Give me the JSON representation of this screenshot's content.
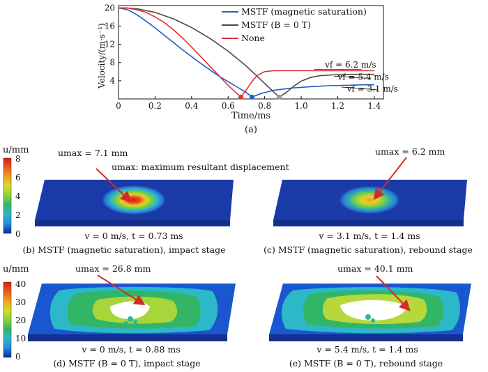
{
  "chart_data": [
    {
      "type": "line",
      "panel_label": "(a)",
      "xlabel": "Time/ms",
      "ylabel": "Velocity/(m·s⁻¹)",
      "xlim": [
        0,
        1.45
      ],
      "ylim": [
        0,
        20.5
      ],
      "xticks": [
        "0",
        "0.2",
        "0.4",
        "0.6",
        "0.8",
        "1.0",
        "1.2",
        "1.4"
      ],
      "yticks": [
        "4",
        "8",
        "12",
        "16",
        "20"
      ],
      "legend_position": "top-right",
      "legend": [
        "MSTF (magnetic saturation)",
        "MSTF (B = 0 T)",
        "None"
      ],
      "series": [
        {
          "name": "MSTF (magnetic saturation)",
          "color": "#1f5fbf",
          "x": [
            0,
            0.05,
            0.1,
            0.15,
            0.2,
            0.25,
            0.3,
            0.35,
            0.4,
            0.45,
            0.5,
            0.55,
            0.6,
            0.65,
            0.7,
            0.73,
            0.78,
            0.85,
            0.95,
            1.05,
            1.15,
            1.25,
            1.35,
            1.4
          ],
          "y": [
            20,
            19.6,
            18.5,
            17.1,
            15.6,
            14.0,
            12.4,
            10.8,
            9.3,
            7.8,
            6.4,
            5.0,
            3.8,
            2.6,
            1.4,
            0.4,
            1.2,
            1.9,
            2.4,
            2.7,
            2.9,
            3.0,
            3.1,
            3.1
          ]
        },
        {
          "name": "MSTF (B = 0 T)",
          "color": "#4a4a4a",
          "x": [
            0,
            0.05,
            0.1,
            0.2,
            0.3,
            0.4,
            0.5,
            0.6,
            0.7,
            0.75,
            0.8,
            0.85,
            0.88,
            0.92,
            0.96,
            1.0,
            1.05,
            1.1,
            1.2,
            1.3,
            1.4
          ],
          "y": [
            20,
            19.97,
            19.8,
            19.0,
            17.6,
            15.7,
            13.3,
            10.5,
            7.2,
            5.3,
            3.4,
            1.5,
            0.4,
            1.5,
            2.8,
            3.9,
            4.7,
            5.1,
            5.35,
            5.4,
            5.4
          ]
        },
        {
          "name": "None",
          "color": "#e03030",
          "x": [
            0,
            0.05,
            0.1,
            0.15,
            0.2,
            0.25,
            0.3,
            0.35,
            0.4,
            0.45,
            0.5,
            0.55,
            0.6,
            0.64,
            0.67,
            0.7,
            0.73,
            0.76,
            0.8,
            0.85,
            0.9,
            1.0,
            1.2,
            1.4
          ],
          "y": [
            20,
            19.95,
            19.6,
            19.0,
            18.0,
            16.8,
            15.2,
            13.4,
            11.4,
            9.3,
            7.2,
            5.1,
            3.0,
            1.5,
            0.4,
            2.0,
            3.8,
            5.2,
            6.0,
            6.2,
            6.2,
            6.2,
            6.2,
            6.2
          ]
        }
      ],
      "markers": [
        {
          "x": 0.67,
          "y": 0.4,
          "color": "#e03030"
        },
        {
          "x": 0.73,
          "y": 0.4,
          "color": "#1f5fbf"
        },
        {
          "x": 0.88,
          "y": 0.4,
          "color": "#9a9a9a"
        }
      ],
      "annotations": [
        {
          "text": "vf = 6.2 m/s",
          "x": 1.13,
          "y": 6.9,
          "leader_x": [
            1.07,
            1.33
          ],
          "leader_y": [
            6.5,
            6.5
          ]
        },
        {
          "text": "vf = 5.4 m/s",
          "x": 1.2,
          "y": 4.2,
          "leader_x": [
            1.18,
            1.38
          ],
          "leader_y": [
            5.0,
            4.5
          ]
        },
        {
          "text": "vf = 3.1 m/s",
          "x": 1.25,
          "y": 1.6,
          "leader_x": [
            1.22,
            1.42
          ],
          "leader_y": [
            2.6,
            2.0
          ]
        }
      ]
    },
    {
      "type": "heatmap",
      "colorbar_label": "u/mm",
      "colorbar_ticks": [
        "8",
        "6",
        "4",
        "2",
        "0"
      ],
      "title_note": "umax: maximum resultant displacement",
      "panels": [
        {
          "label": "(b) MSTF (magnetic saturation), impact stage",
          "state": "v = 0 m/s, t = 0.73 ms",
          "umax": "umax = 7.1 mm"
        },
        {
          "label": "(c) MSTF (magnetic saturation), rebound stage",
          "state": "v = 3.1 m/s, t = 1.4 ms",
          "umax": "umax = 6.2 mm"
        }
      ]
    },
    {
      "type": "heatmap",
      "colorbar_label": "u/mm",
      "colorbar_ticks": [
        "40",
        "30",
        "20",
        "10",
        "0"
      ],
      "panels": [
        {
          "label": "(d) MSTF (B = 0 T), impact stage",
          "state": "v = 0 m/s, t = 0.88 ms",
          "umax": "umax = 26.8 mm"
        },
        {
          "label": "(e) MSTF (B = 0 T), rebound stage",
          "state": "v = 5.4 m/s, t = 1.4 ms",
          "umax": "umax = 40.1 mm"
        }
      ]
    }
  ],
  "colors": {
    "plate_blue": "#1a3aa8",
    "arrow_red": "#d42a2a",
    "colormap": [
      "#0a2a9a",
      "#1a56d0",
      "#2a8ae0",
      "#2cb8c8",
      "#33b566",
      "#8cd13a",
      "#d8dc2a",
      "#f0a020",
      "#e85a1a",
      "#d81818"
    ]
  }
}
